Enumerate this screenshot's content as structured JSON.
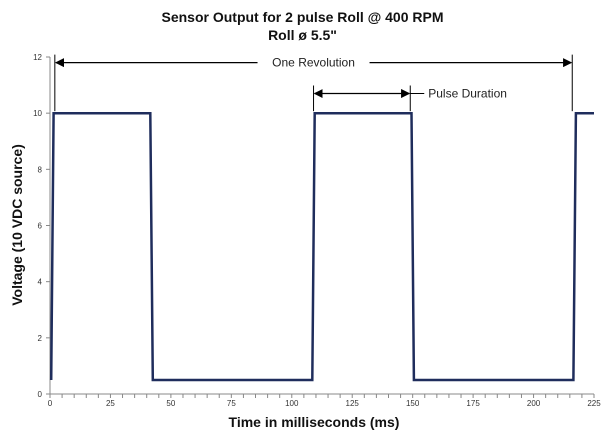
{
  "chart_data": {
    "type": "line",
    "title": "Sensor Output for 2 pulse Roll @ 400 RPM",
    "subtitle": "Roll ø 5.5\"",
    "xlabel": "Time in milliseconds (ms)",
    "ylabel": "Voltage (10 VDC source)",
    "xlim": [
      0,
      225
    ],
    "ylim": [
      0,
      12
    ],
    "xticks": [
      0,
      25,
      50,
      75,
      100,
      125,
      150,
      175,
      200,
      225
    ],
    "yticks": [
      0,
      2,
      4,
      6,
      8,
      10,
      12
    ],
    "grid": false,
    "series": [
      {
        "color": "#1f2d5c",
        "x": [
          0.5,
          1.5,
          41.5,
          42.5,
          108.5,
          109.5,
          149.5,
          150.5,
          216.5,
          217.5,
          225
        ],
        "y": [
          0.5,
          10,
          10,
          0.5,
          0.5,
          10,
          10,
          0.5,
          0.5,
          10,
          10
        ]
      }
    ],
    "annotations": [
      {
        "text": "One Revolution",
        "x_start": 2,
        "x_end": 216,
        "y": 11.8
      },
      {
        "text": "Pulse Duration",
        "x_start": 109,
        "x_end": 149,
        "y": 10.7
      }
    ]
  }
}
